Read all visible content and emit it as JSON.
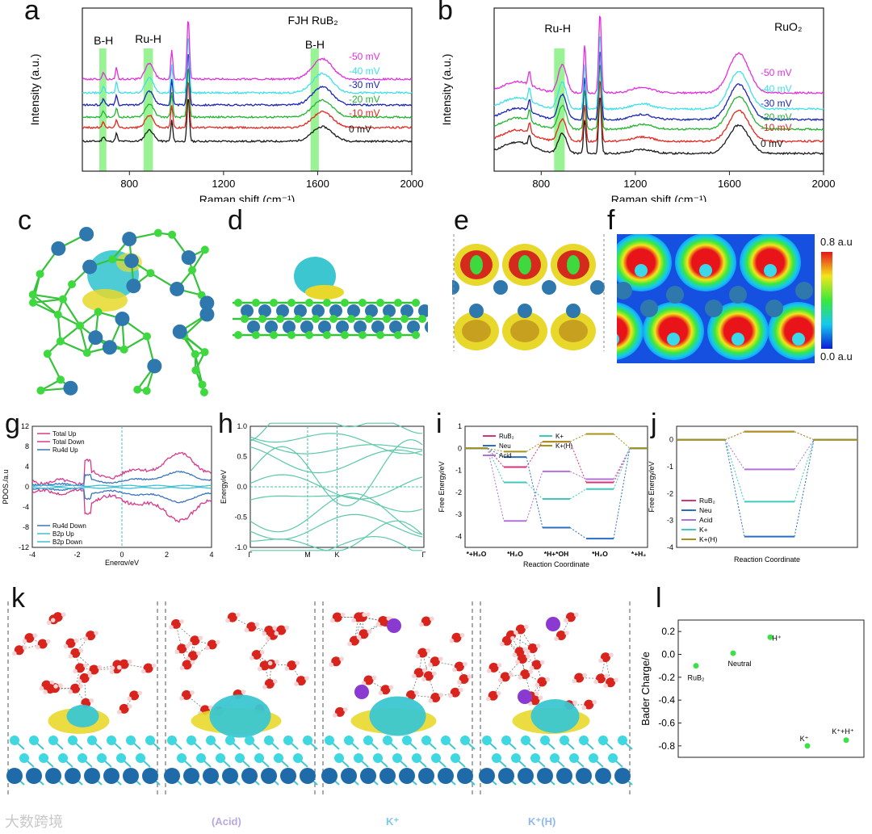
{
  "panel_labels": {
    "a": "a",
    "b": "b",
    "c": "c",
    "d": "d",
    "e": "e",
    "f": "f",
    "g": "g",
    "h": "h",
    "i": "i",
    "j": "j",
    "k": "k",
    "l": "l"
  },
  "colors": {
    "black": "#1a1a1a",
    "red": "#e8251e",
    "green": "#22b431",
    "blue": "#1c24b8",
    "cyan": "#3fe0e8",
    "magenta": "#e32fe0",
    "highlight": "#7ff07a"
  },
  "raman_a": {
    "title": "FJH RuB₂",
    "xlabel": "Raman shift (cm⁻¹)",
    "ylabel": "Intensity (a.u.)",
    "ticks": [
      "800",
      "1200",
      "1600",
      "2000"
    ],
    "band_labels": [
      "B-H",
      "Ru-H",
      "B-H"
    ],
    "series_labels": [
      "-50 mV",
      "-40 mV",
      "-30 mV",
      "-20 mV",
      "-10 mV",
      "0 mV"
    ]
  },
  "raman_b": {
    "title": "RuO₂",
    "xlabel": "Raman shift (cm⁻¹)",
    "ylabel": "Intensity (a.u.)",
    "ticks": [
      "800",
      "1200",
      "1600",
      "2000"
    ],
    "band_labels": [
      "Ru-H"
    ],
    "series_labels": [
      "-50 mV",
      "-40 mV",
      "-30 mV",
      "-20 mV",
      "-10 mV",
      "0 mV"
    ]
  },
  "colorbar": {
    "max": "0.8 a.u",
    "min": "0.0 a.u"
  },
  "chart_data": [
    {
      "type": "line",
      "panel": "g",
      "xlabel": "Energy/eV",
      "ylabel": "PDOS./a.u",
      "xlim": [
        -4,
        4
      ],
      "ylim": [
        -12,
        12
      ],
      "xticks": [
        "-4",
        "-2",
        "0",
        "2",
        "4"
      ],
      "yticks": [
        "12",
        "8",
        "4",
        "0",
        "-4",
        "-8",
        "-12"
      ],
      "legend_top": [
        "Total Up",
        "Total Down",
        "Ru4d Up"
      ],
      "legend_bottom": [
        "Ru4d Down",
        "B2p Up",
        "B2p Down"
      ]
    },
    {
      "type": "line",
      "panel": "h",
      "ylabel": "Energy/eV",
      "ylim": [
        -1.0,
        1.0
      ],
      "yticks": [
        "1.0",
        "0.5",
        "0.0",
        "-0.5",
        "-1.0"
      ],
      "kpoints": [
        "Γ",
        "M",
        "K",
        "Γ"
      ]
    },
    {
      "type": "line",
      "panel": "i",
      "xlabel": "Reaction Coordinate",
      "ylabel": "Free Energy/eV",
      "ylim": [
        -4.5,
        1.0
      ],
      "yticks": [
        "1",
        "0",
        "-1",
        "-2",
        "-3",
        "-4"
      ],
      "categories": [
        "*+H₂O",
        "*H₂O",
        "*H+*OH",
        "*H₂O",
        "*+H₂"
      ],
      "series": [
        {
          "name": "RuB₂",
          "values": [
            0,
            -0.85,
            0.3,
            -1.55,
            0
          ]
        },
        {
          "name": "Neu",
          "values": [
            0,
            -0.4,
            -3.6,
            -4.1,
            0
          ]
        },
        {
          "name": "Acid",
          "values": [
            0,
            -3.3,
            -1.05,
            -1.4,
            0
          ]
        },
        {
          "name": "K+",
          "values": [
            0,
            -1.55,
            -2.3,
            -1.85,
            0
          ]
        },
        {
          "name": "K+(H)",
          "values": [
            0,
            -0.15,
            0.3,
            0.65,
            0
          ]
        }
      ]
    },
    {
      "type": "line",
      "panel": "j",
      "xlabel": "Reaction Coordinate",
      "ylabel": "Free Energy/eV",
      "ylim": [
        -4.0,
        0.5
      ],
      "yticks": [
        "0",
        "-1",
        "-2",
        "-3",
        "-4"
      ],
      "series": [
        {
          "name": "RuB₂",
          "values": [
            0,
            0.3,
            0
          ]
        },
        {
          "name": "Neu",
          "values": [
            0,
            -3.6,
            0
          ]
        },
        {
          "name": "Acid",
          "values": [
            0,
            -1.1,
            0
          ]
        },
        {
          "name": "K+",
          "values": [
            0,
            -2.3,
            0
          ]
        },
        {
          "name": "K+(H)",
          "values": [
            0,
            0.3,
            0
          ]
        }
      ]
    },
    {
      "type": "scatter",
      "panel": "l",
      "ylabel": "Bader Charge/e",
      "ylim": [
        -0.9,
        0.3
      ],
      "yticks": [
        "0.2",
        "0.0",
        "-0.2",
        "-0.4",
        "-0.6",
        "-0.8"
      ],
      "points": [
        {
          "label": "RuB₂",
          "y": -0.1
        },
        {
          "label": "Neutral",
          "y": 0.01
        },
        {
          "label": "H⁺",
          "y": 0.15
        },
        {
          "label": "K⁺",
          "y": -0.8
        },
        {
          "label": "K⁺+H⁺",
          "y": -0.75
        }
      ]
    }
  ],
  "k_captions": [
    "(Acid)",
    "K⁺",
    "K⁺(H)"
  ],
  "watermark": "大数跨境"
}
